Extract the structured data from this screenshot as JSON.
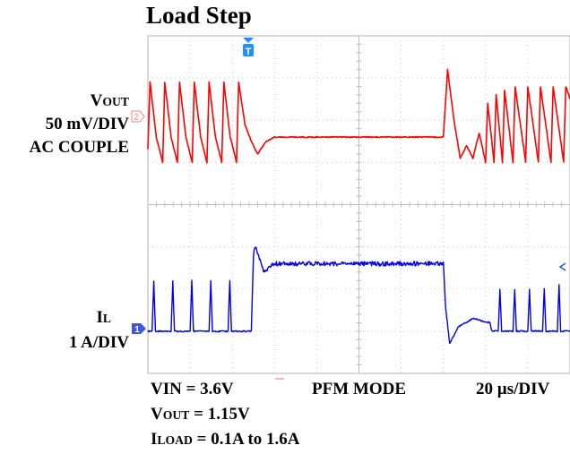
{
  "chart_data": {
    "type": "line",
    "title": "Load Step",
    "x_divisions": 10,
    "y_divisions": 8,
    "grid": true,
    "trigger_marker": "T",
    "series": [
      {
        "name_main": "V",
        "name_sub": "OUT",
        "scale": "50 mV/DIV",
        "coupling": "AC COUPLE",
        "channel": "2",
        "color": "#ff0000",
        "values": [
          {
            "x": 0.0,
            "y": -0.3
          },
          {
            "x": 0.05,
            "y": 1.3
          },
          {
            "x": 0.2,
            "y": 0.0
          },
          {
            "x": 0.35,
            "y": -0.6
          },
          {
            "x": 0.4,
            "y": 1.3
          },
          {
            "x": 0.55,
            "y": 0.0
          },
          {
            "x": 0.7,
            "y": -0.6
          },
          {
            "x": 0.75,
            "y": 1.3
          },
          {
            "x": 0.9,
            "y": 0.0
          },
          {
            "x": 1.05,
            "y": -0.6
          },
          {
            "x": 1.1,
            "y": 1.3
          },
          {
            "x": 1.25,
            "y": 0.0
          },
          {
            "x": 1.4,
            "y": -0.6
          },
          {
            "x": 1.45,
            "y": 1.3
          },
          {
            "x": 1.6,
            "y": 0.0
          },
          {
            "x": 1.75,
            "y": -0.6
          },
          {
            "x": 1.8,
            "y": 1.3
          },
          {
            "x": 1.95,
            "y": 0.0
          },
          {
            "x": 2.1,
            "y": -0.6
          },
          {
            "x": 2.15,
            "y": 1.3
          },
          {
            "x": 2.3,
            "y": 0.3
          },
          {
            "x": 2.45,
            "y": -0.1
          },
          {
            "x": 2.6,
            "y": -0.4
          },
          {
            "x": 2.8,
            "y": -0.1
          },
          {
            "x": 3.0,
            "y": 0.0
          },
          {
            "x": 3.6,
            "y": 0.0
          },
          {
            "x": 4.6,
            "y": 0.0
          },
          {
            "x": 5.6,
            "y": 0.0
          },
          {
            "x": 6.6,
            "y": 0.0
          },
          {
            "x": 7.0,
            "y": 0.0
          },
          {
            "x": 7.1,
            "y": 1.6
          },
          {
            "x": 7.25,
            "y": 0.4
          },
          {
            "x": 7.4,
            "y": -0.5
          },
          {
            "x": 7.55,
            "y": -0.2
          },
          {
            "x": 7.7,
            "y": -0.5
          },
          {
            "x": 7.85,
            "y": 0.1
          },
          {
            "x": 8.0,
            "y": -0.6
          },
          {
            "x": 8.05,
            "y": 0.8
          },
          {
            "x": 8.2,
            "y": -0.6
          },
          {
            "x": 8.25,
            "y": 1.0
          },
          {
            "x": 8.4,
            "y": -0.6
          },
          {
            "x": 8.45,
            "y": 1.1
          },
          {
            "x": 8.65,
            "y": -0.6
          },
          {
            "x": 8.7,
            "y": 1.2
          },
          {
            "x": 8.95,
            "y": -0.6
          },
          {
            "x": 9.0,
            "y": 1.2
          },
          {
            "x": 9.25,
            "y": -0.6
          },
          {
            "x": 9.3,
            "y": 1.2
          },
          {
            "x": 9.55,
            "y": -0.6
          },
          {
            "x": 9.6,
            "y": 1.2
          },
          {
            "x": 9.85,
            "y": -0.6
          },
          {
            "x": 9.9,
            "y": 1.2
          },
          {
            "x": 10.0,
            "y": 0.9
          }
        ]
      },
      {
        "name_main": "I",
        "name_sub": "L",
        "scale": "1 A/DIV",
        "channel": "1",
        "color": "#0000ee",
        "values": [
          {
            "x": 0.0,
            "y": 0.0
          },
          {
            "x": 0.1,
            "y": 0.0
          },
          {
            "x": 0.14,
            "y": 1.2
          },
          {
            "x": 0.18,
            "y": 0.0
          },
          {
            "x": 0.55,
            "y": 0.0
          },
          {
            "x": 0.59,
            "y": 1.2
          },
          {
            "x": 0.63,
            "y": 0.0
          },
          {
            "x": 1.0,
            "y": 0.0
          },
          {
            "x": 1.04,
            "y": 1.2
          },
          {
            "x": 1.08,
            "y": 0.0
          },
          {
            "x": 1.45,
            "y": 0.0
          },
          {
            "x": 1.49,
            "y": 1.2
          },
          {
            "x": 1.53,
            "y": 0.0
          },
          {
            "x": 1.9,
            "y": 0.0
          },
          {
            "x": 1.94,
            "y": 1.2
          },
          {
            "x": 1.98,
            "y": 0.0
          },
          {
            "x": 2.45,
            "y": 0.0
          },
          {
            "x": 2.5,
            "y": 1.8
          },
          {
            "x": 2.55,
            "y": 2.0
          },
          {
            "x": 2.75,
            "y": 1.4
          },
          {
            "x": 3.0,
            "y": 1.6
          },
          {
            "x": 4.0,
            "y": 1.6
          },
          {
            "x": 5.0,
            "y": 1.6
          },
          {
            "x": 6.0,
            "y": 1.6
          },
          {
            "x": 7.0,
            "y": 1.6
          },
          {
            "x": 7.05,
            "y": 0.6
          },
          {
            "x": 7.15,
            "y": -0.3
          },
          {
            "x": 7.35,
            "y": 0.1
          },
          {
            "x": 7.7,
            "y": 0.3
          },
          {
            "x": 8.1,
            "y": 0.2
          },
          {
            "x": 8.15,
            "y": 0.0
          },
          {
            "x": 8.3,
            "y": 0.0
          },
          {
            "x": 8.34,
            "y": 1.0
          },
          {
            "x": 8.38,
            "y": 0.0
          },
          {
            "x": 8.65,
            "y": 0.0
          },
          {
            "x": 8.69,
            "y": 1.0
          },
          {
            "x": 8.73,
            "y": 0.0
          },
          {
            "x": 9.0,
            "y": 0.0
          },
          {
            "x": 9.04,
            "y": 1.0
          },
          {
            "x": 9.08,
            "y": 0.0
          },
          {
            "x": 9.35,
            "y": 0.0
          },
          {
            "x": 9.39,
            "y": 1.0
          },
          {
            "x": 9.43,
            "y": 0.0
          },
          {
            "x": 9.7,
            "y": 0.0
          },
          {
            "x": 9.74,
            "y": 1.1
          },
          {
            "x": 9.78,
            "y": 0.0
          },
          {
            "x": 10.0,
            "y": 0.0
          }
        ]
      }
    ],
    "annotations": {
      "vin": "VIN = 3.6V",
      "mode": "PFM MODE",
      "timebase": "20 µs/DIV",
      "vout_main": "V",
      "vout_sub": "OUT",
      "vout_value": " = 1.15V",
      "iload_main": "I",
      "iload_sub": "LOAD",
      "iload_value": " = 0.1A to 1.6A"
    }
  }
}
